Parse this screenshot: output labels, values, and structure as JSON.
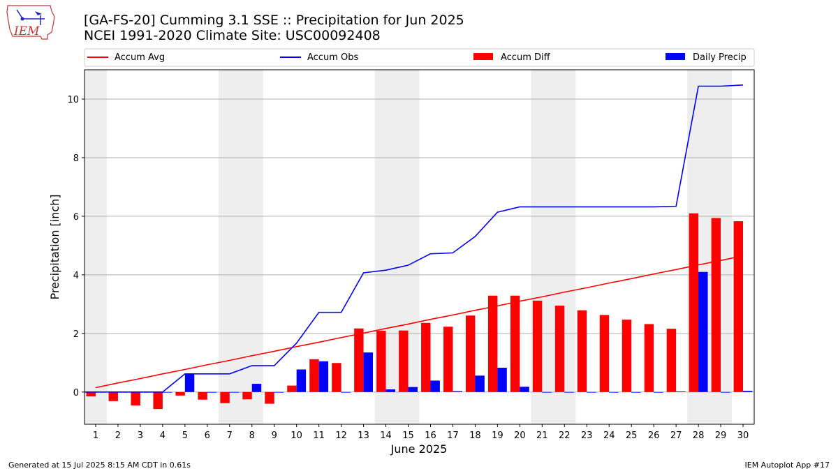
{
  "header": {
    "title_line1": "[GA-FS-20] Cumming 3.1 SSE :: Precipitation for Jun 2025",
    "title_line2": "NCEI 1991-2020 Climate Site: USC00092408"
  },
  "logo": {
    "text": "IEM",
    "icon": "iem-iowa-logo"
  },
  "footer": {
    "generated": "Generated at 15 Jul 2025 8:15 AM CDT in 0.61s",
    "app": "IEM Autoplot App #17"
  },
  "chart_data": {
    "type": "bar",
    "xlabel": "June 2025",
    "ylabel": "Precipitation [inch]",
    "ylim": [
      -1.1,
      11.0
    ],
    "xlim": [
      0.5,
      30.5
    ],
    "yticks": [
      0,
      2,
      4,
      6,
      8,
      10
    ],
    "grid": "y",
    "legend_placement": "top",
    "x": [
      1,
      2,
      3,
      4,
      5,
      6,
      7,
      8,
      9,
      10,
      11,
      12,
      13,
      14,
      15,
      16,
      17,
      18,
      19,
      20,
      21,
      22,
      23,
      24,
      25,
      26,
      27,
      28,
      29,
      30
    ],
    "weekend_shading": [
      [
        0.5,
        1.5
      ],
      [
        6.5,
        8.5
      ],
      [
        13.5,
        15.5
      ],
      [
        20.5,
        22.5
      ],
      [
        27.5,
        29.5
      ]
    ],
    "colors": {
      "accum_avg": "#ff0000",
      "accum_obs": "#0000ff",
      "accum_diff": "#ff0000",
      "daily_precip": "#0000ff",
      "shading": "#eeeeee",
      "grid": "#b0b0b0"
    },
    "series": [
      {
        "name": "Accum Avg",
        "kind": "line",
        "values": [
          0.15,
          0.31,
          0.46,
          0.62,
          0.77,
          0.93,
          1.08,
          1.24,
          1.39,
          1.55,
          1.7,
          1.86,
          2.01,
          2.17,
          2.32,
          2.48,
          2.63,
          2.79,
          2.94,
          3.1,
          3.25,
          3.41,
          3.56,
          3.72,
          3.87,
          4.03,
          4.18,
          4.34,
          4.49,
          4.65
        ]
      },
      {
        "name": "Accum Obs",
        "kind": "line",
        "values": [
          0.0,
          0.0,
          0.0,
          0.0,
          0.62,
          0.62,
          0.62,
          0.9,
          0.9,
          1.67,
          2.72,
          2.72,
          4.07,
          4.16,
          4.33,
          4.72,
          4.75,
          5.31,
          6.14,
          6.32,
          6.32,
          6.32,
          6.32,
          6.32,
          6.32,
          6.32,
          6.34,
          10.44,
          10.44,
          10.48
        ]
      },
      {
        "name": "Accum Diff",
        "kind": "bar",
        "values": [
          -0.15,
          -0.31,
          -0.46,
          -0.58,
          -0.12,
          -0.26,
          -0.38,
          -0.25,
          -0.4,
          0.22,
          1.12,
          0.99,
          2.17,
          2.09,
          2.1,
          2.36,
          2.23,
          2.61,
          3.29,
          3.29,
          3.12,
          2.95,
          2.79,
          2.63,
          2.47,
          2.32,
          2.16,
          6.1,
          5.94,
          5.83
        ]
      },
      {
        "name": "Daily Precip",
        "kind": "bar",
        "values": [
          0,
          0,
          0,
          0,
          0.62,
          0,
          0,
          0.28,
          0,
          0.77,
          1.05,
          0,
          1.35,
          0.09,
          0.17,
          0.39,
          0.03,
          0.56,
          0.83,
          0.18,
          0,
          0,
          0,
          0,
          0,
          0,
          0.02,
          4.1,
          0,
          0.04
        ]
      }
    ]
  }
}
